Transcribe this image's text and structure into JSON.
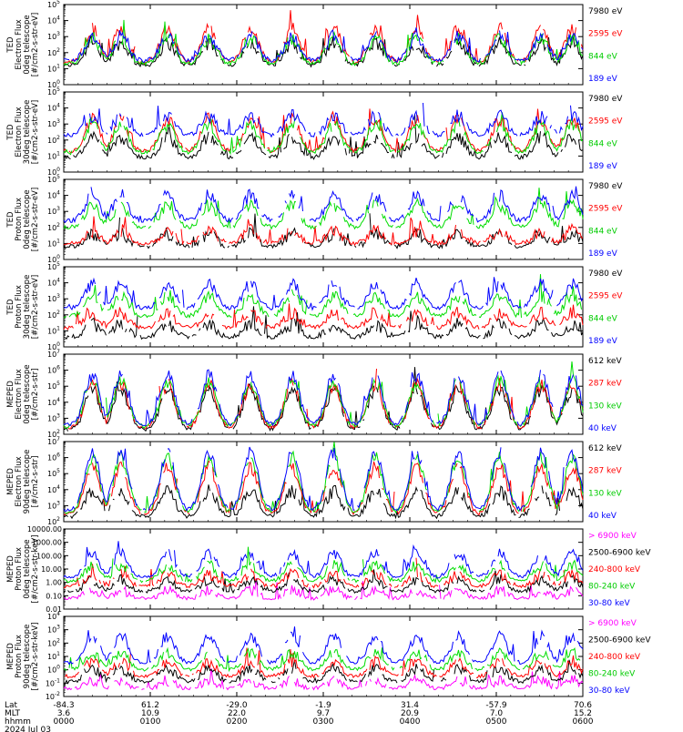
{
  "chart_data": [
    {
      "type": "line",
      "ylabel_lines": [
        "TED",
        "Electron Flux",
        "0deg telescope",
        "[#/cm2-s-str-eV]"
      ],
      "log_scale": true,
      "ylim_exp": [
        0,
        5
      ],
      "series": [
        {
          "name": "7980 eV",
          "color": "#000000",
          "base": 1.2,
          "amp": 1.4
        },
        {
          "name": "2595 eV",
          "color": "#ff0000",
          "base": 1.4,
          "amp": 2.1
        },
        {
          "name": "844 eV",
          "color": "#00dd00",
          "base": 1.3,
          "amp": 1.6
        },
        {
          "name": "189 eV",
          "color": "#0000ff",
          "base": 1.5,
          "amp": 1.5
        }
      ]
    },
    {
      "type": "line",
      "ylabel_lines": [
        "TED",
        "Electron Flux",
        "30deg telescope",
        "[#/cm2-s-str-eV]"
      ],
      "log_scale": true,
      "ylim_exp": [
        0,
        5
      ],
      "series": [
        {
          "name": "7980 eV",
          "color": "#000000",
          "base": 0.9,
          "amp": 1.3
        },
        {
          "name": "2595 eV",
          "color": "#ff0000",
          "base": 1.3,
          "amp": 2.0
        },
        {
          "name": "844 eV",
          "color": "#00dd00",
          "base": 1.2,
          "amp": 1.8
        },
        {
          "name": "189 eV",
          "color": "#0000ff",
          "base": 2.3,
          "amp": 1.2
        }
      ]
    },
    {
      "type": "line",
      "ylabel_lines": [
        "TED",
        "Proton Flux",
        "0deg telescope",
        "[#/cm2-s-str-eV]"
      ],
      "log_scale": true,
      "ylim_exp": [
        0,
        5
      ],
      "series": [
        {
          "name": "7980 eV",
          "color": "#000000",
          "base": 0.8,
          "amp": 0.8
        },
        {
          "name": "2595 eV",
          "color": "#ff0000",
          "base": 1.0,
          "amp": 0.8
        },
        {
          "name": "844 eV",
          "color": "#00dd00",
          "base": 2.0,
          "amp": 1.4
        },
        {
          "name": "189 eV",
          "color": "#0000ff",
          "base": 2.4,
          "amp": 1.6
        }
      ]
    },
    {
      "type": "line",
      "ylabel_lines": [
        "TED",
        "Proton Flux",
        "30deg telescope",
        "[#/cm2-s-str-eV]"
      ],
      "log_scale": true,
      "ylim_exp": [
        0,
        5
      ],
      "series": [
        {
          "name": "7980 eV",
          "color": "#000000",
          "base": 0.6,
          "amp": 0.8
        },
        {
          "name": "2595 eV",
          "color": "#ff0000",
          "base": 1.2,
          "amp": 0.9
        },
        {
          "name": "844 eV",
          "color": "#00dd00",
          "base": 1.9,
          "amp": 1.3
        },
        {
          "name": "189 eV",
          "color": "#0000ff",
          "base": 2.4,
          "amp": 1.5
        }
      ]
    },
    {
      "type": "line",
      "ylabel_lines": [
        "MEPED",
        "Electron Flux",
        "0deg telescope",
        "[#/cm2-s-str]"
      ],
      "log_scale": true,
      "ylim_exp": [
        2,
        7
      ],
      "series": [
        {
          "name": "612 keV",
          "color": "#000000",
          "base": 2.3,
          "amp": 2.5
        },
        {
          "name": "287 keV",
          "color": "#ff0000",
          "base": 2.4,
          "amp": 2.7
        },
        {
          "name": "130 keV",
          "color": "#00dd00",
          "base": 2.5,
          "amp": 2.8
        },
        {
          "name": "40 keV",
          "color": "#0000ff",
          "base": 2.6,
          "amp": 3.1
        }
      ]
    },
    {
      "type": "line",
      "ylabel_lines": [
        "MEPED",
        "Electron Flux",
        "90deg telescope",
        "[#/cm2-s-str]"
      ],
      "log_scale": true,
      "ylim_exp": [
        2,
        7
      ],
      "series": [
        {
          "name": "612 keV",
          "color": "#000000",
          "base": 2.3,
          "amp": 1.6
        },
        {
          "name": "287 keV",
          "color": "#ff0000",
          "base": 2.5,
          "amp": 2.9
        },
        {
          "name": "130 keV",
          "color": "#00dd00",
          "base": 2.6,
          "amp": 3.4
        },
        {
          "name": "40 keV",
          "color": "#0000ff",
          "base": 2.7,
          "amp": 3.6
        }
      ]
    },
    {
      "type": "line",
      "ylabel_lines": [
        "MEPED",
        "Proton Flux",
        "0deg telescope",
        "[#/cm2-s-str-keV]"
      ],
      "log_scale": true,
      "ylim_exp": [
        -2,
        4
      ],
      "tick_labels": [
        "0.01",
        "0.10",
        "1.00",
        "10.00",
        "100.00",
        "1000.00",
        "10000.00"
      ],
      "series": [
        {
          "name": "> 6900 keV",
          "color": "#ff00ff",
          "base": -1.2,
          "amp": 0.6
        },
        {
          "name": "2500-6900 keV",
          "color": "#000000",
          "base": -0.7,
          "amp": 0.9
        },
        {
          "name": "240-800 keV",
          "color": "#ff0000",
          "base": -0.3,
          "amp": 0.9
        },
        {
          "name": "80-240 keV",
          "color": "#00dd00",
          "base": 0.1,
          "amp": 1.2
        },
        {
          "name": "30-80 keV",
          "color": "#0000ff",
          "base": 0.4,
          "amp": 1.8
        }
      ]
    },
    {
      "type": "line",
      "ylabel_lines": [
        "MEPED",
        "Proton Flux",
        "90deg telescope",
        "[#/cm2-s-str-keV]"
      ],
      "log_scale": true,
      "ylim_exp": [
        -2,
        4
      ],
      "series": [
        {
          "name": "> 6900 keV",
          "color": "#ff00ff",
          "base": -1.4,
          "amp": 0.6
        },
        {
          "name": "2500-6900 keV",
          "color": "#000000",
          "base": -0.9,
          "amp": 1.0
        },
        {
          "name": "240-800 keV",
          "color": "#ff0000",
          "base": -0.5,
          "amp": 1.1
        },
        {
          "name": "80-240 keV",
          "color": "#00dd00",
          "base": 0.0,
          "amp": 1.3
        },
        {
          "name": "30-80 keV",
          "color": "#0000ff",
          "base": 0.5,
          "amp": 2.0
        }
      ]
    }
  ],
  "x_axis": {
    "row_labels": [
      "Lat",
      "MLT",
      "hhmm",
      "2024 Jul 03"
    ],
    "ticks": [
      {
        "lat": "-84.3",
        "mlt": "3.6",
        "hhmm": "0000",
        "frac": 0.0
      },
      {
        "lat": "61.2",
        "mlt": "10.9",
        "hhmm": "0100",
        "frac": 0.1667
      },
      {
        "lat": "-29.0",
        "mlt": "22.0",
        "hhmm": "0200",
        "frac": 0.3333
      },
      {
        "lat": "-1.9",
        "mlt": "9.7",
        "hhmm": "0300",
        "frac": 0.5
      },
      {
        "lat": "31.4",
        "mlt": "20.9",
        "hhmm": "0400",
        "frac": 0.6667
      },
      {
        "lat": "-57.9",
        "mlt": "7.0",
        "hhmm": "0500",
        "frac": 0.8333
      },
      {
        "lat": "70.6",
        "mlt": "15.2",
        "hhmm": "0600",
        "frac": 1.0
      }
    ]
  },
  "pass_centers": [
    0.055,
    0.11,
    0.2,
    0.28,
    0.36,
    0.44,
    0.52,
    0.6,
    0.68,
    0.76,
    0.84,
    0.92,
    0.98
  ]
}
